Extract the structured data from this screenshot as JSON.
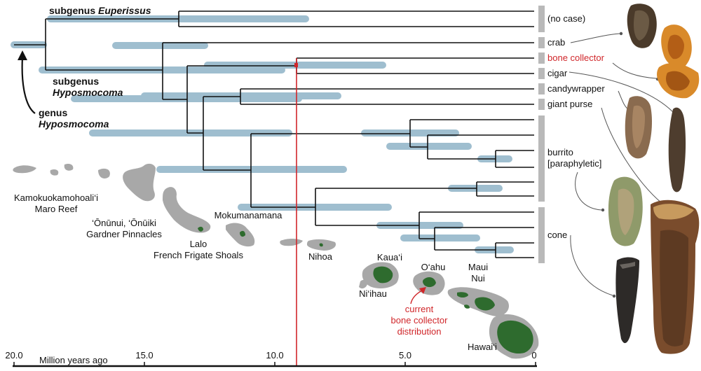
{
  "labels": {
    "subgenus_euperissus_prefix": "subgenus ",
    "subgenus_euperissus_name": "Euperissus",
    "subgenus_hyposmocoma_prefix": "subgenus",
    "subgenus_hyposmocoma_name": "Hyposmocoma",
    "genus_prefix": "genus",
    "genus_name": "Hyposmocoma"
  },
  "case_types": [
    {
      "label": "(no case)",
      "highlight": false
    },
    {
      "label": "crab",
      "highlight": false
    },
    {
      "label": "bone collector",
      "highlight": true
    },
    {
      "label": "cigar",
      "highlight": false
    },
    {
      "label": "candywrapper",
      "highlight": false
    },
    {
      "label": "giant purse",
      "highlight": false
    },
    {
      "label": "burrito",
      "highlight": false
    },
    {
      "label": "[paraphyletic]",
      "highlight": false
    },
    {
      "label": "cone",
      "highlight": false
    }
  ],
  "islands": {
    "kamoku_1": "Kamokuokamohoali‘i",
    "kamoku_2": "Maro Reef",
    "onunui_1": "‘Ōnūnui, ‘Ōnūiki",
    "onunui_2": "Gardner Pinnacles",
    "mokumanamana": "Mokumanamana",
    "lalo_1": "Lalo",
    "lalo_2": "French Frigate Shoals",
    "nihoa": "Nihoa",
    "kauai": "Kaua‘i",
    "niihau": "Ni‘ihau",
    "oahu": "O‘ahu",
    "maui_1": "Maui",
    "maui_2": "Nui",
    "hawaii": "Hawai‘i"
  },
  "annotation": {
    "line1": "current",
    "line2": "bone collector",
    "line3": "distribution"
  },
  "axis": {
    "title": "Million years ago",
    "ticks": [
      "20.0",
      "15.0",
      "10.0",
      "5.0",
      "0"
    ]
  },
  "colors": {
    "branch": "#111111",
    "ci_bar": "#8fb3c7",
    "island": "#a8a8a8",
    "habitat": "#2e6b2e",
    "highlight": "#d0262a",
    "bracket": "#b9b9b9"
  }
}
